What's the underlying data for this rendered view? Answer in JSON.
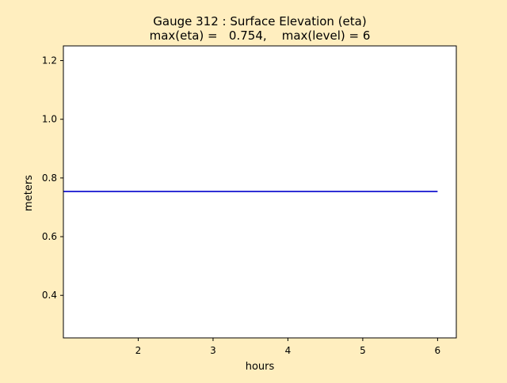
{
  "colors": {
    "figure_background": "#FFEEBF",
    "axes_background": "#FFFFFF",
    "series_line": "#0000CC",
    "axes_edge": "#000000"
  },
  "chart_data": {
    "type": "line",
    "title_line1": "Gauge 312 : Surface Elevation (eta)",
    "title_line2": "max(eta) =   0.754,    max(level) = 6",
    "xlabel": "hours",
    "ylabel": "meters",
    "xlim": [
      1.0,
      6.25
    ],
    "ylim": [
      0.255,
      1.25
    ],
    "x_ticks": [
      2,
      3,
      4,
      5,
      6
    ],
    "x_tick_labels": [
      "2",
      "3",
      "4",
      "5",
      "6"
    ],
    "y_ticks": [
      0.4,
      0.6,
      0.8,
      1.0,
      1.2
    ],
    "y_tick_labels": [
      "0.4",
      "0.6",
      "0.8",
      "1.0",
      "1.2"
    ],
    "grid": false,
    "series": [
      {
        "x": [
          1.0,
          2.0,
          3.0,
          4.0,
          5.0,
          6.0
        ],
        "y": [
          0.754,
          0.754,
          0.754,
          0.754,
          0.754,
          0.754
        ],
        "color": "#0000CC"
      }
    ]
  }
}
